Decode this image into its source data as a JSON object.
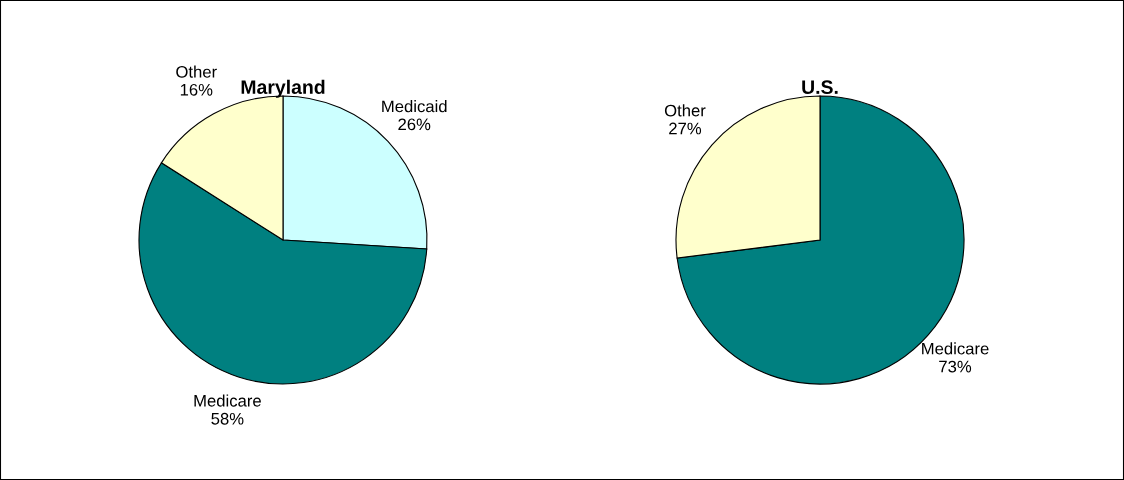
{
  "chart_data": [
    {
      "type": "pie",
      "title": "Maryland",
      "categories": [
        "Medicaid",
        "Medicare",
        "Other"
      ],
      "values": [
        26,
        58,
        16
      ],
      "value_labels": [
        "26%",
        "58%",
        "16%"
      ],
      "colors": [
        "#ccffff",
        "#008080",
        "#ffffcc"
      ]
    },
    {
      "type": "pie",
      "title": "U.S.",
      "categories": [
        "Medicare",
        "Other"
      ],
      "values": [
        73,
        27
      ],
      "value_labels": [
        "73%",
        "27%"
      ],
      "colors": [
        "#008080",
        "#ffffcc"
      ]
    }
  ]
}
